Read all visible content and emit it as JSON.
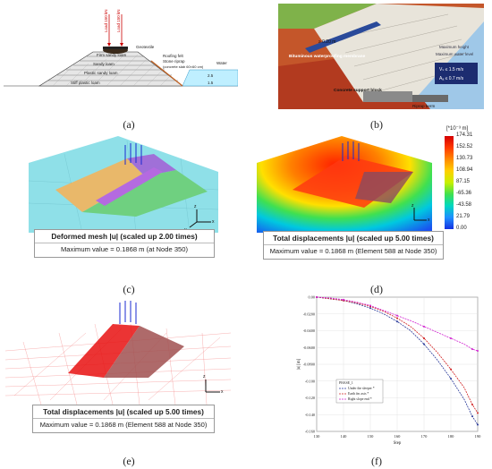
{
  "captions": [
    "(a)",
    "(b)",
    "(c)",
    "(d)",
    "(e)",
    "(f)"
  ],
  "panel_a": {
    "loads": [
      "Load 150 kN",
      "Load 150 kN"
    ],
    "layers": [
      "Firm sandy loam",
      "Sandy loam",
      "Plastic sandy loam",
      "Stiff plastic loam"
    ],
    "labels": {
      "geotextile": "Geotextile",
      "roofing": "Roofing felt",
      "riprap": "Stone riprap",
      "riprap_sub": "(concrete slab 60×60 cm)",
      "water": "Water"
    },
    "dims": [
      "2.5",
      "1.5"
    ]
  },
  "panel_b": {
    "labels": {
      "membrane": "Bituminous waterproofing membrane",
      "support": "Concrete support block",
      "berm": "Riprap berm",
      "thickness": "≥ 0.20 m",
      "right1": "Maximum height",
      "right2": "Maximum water level"
    },
    "legend": [
      "Vₛ ≤ 1.5 m/s",
      "Aₐ ≤ 0.7 m/s"
    ]
  },
  "panel_c": {
    "title": "Deformed mesh |u| (scaled up 2.00 times)",
    "value": "Maximum value = 0.1868 m (at Node 350)"
  },
  "panel_d": {
    "title": "Total displacements |u| (scaled up 5.00 times)",
    "value": "Maximum value = 0.1868 m (Element 588 at Node 350)",
    "scale_unit": "[*10⁻³ m]",
    "scale_values": [
      "174.31",
      "152.52",
      "130.73",
      "108.94",
      "87.15",
      "-65.36",
      "-43.58",
      "21.79",
      "0.00"
    ],
    "scale_colors": [
      "#d50000",
      "#ff3a00",
      "#ff8a00",
      "#ffd000",
      "#c8f000",
      "#40e050",
      "#00d8c0",
      "#1f8fff",
      "#1530e0"
    ]
  },
  "panel_e": {
    "title": "Total displacements |u| (scaled up 5.00 times)",
    "value": "Maximum value = 0.1868 m (Element 588 at Node 350)"
  },
  "panel_f": {
    "chart_data": {
      "type": "line",
      "xlabel": "Step",
      "ylabel": "|u| [m]",
      "xlim": [
        130,
        190
      ],
      "ylim": [
        -0.16,
        0
      ],
      "x_ticks": [
        "130",
        "140",
        "150",
        "160",
        "170",
        "180",
        "190"
      ],
      "y_ticks": [
        "0.00",
        "-0.0200",
        "-0.0400",
        "-0.0600",
        "-0.0800",
        "-0.100",
        "-0.120",
        "-0.140",
        "-0.160"
      ],
      "legend_title": "PHASE_1",
      "series": [
        {
          "name": "Under the sleeper *",
          "color": "#2a3a9a",
          "x": [
            130,
            135,
            140,
            145,
            150,
            155,
            160,
            165,
            170,
            175,
            180,
            185,
            188,
            190
          ],
          "y": [
            0,
            -0.002,
            -0.004,
            -0.008,
            -0.013,
            -0.02,
            -0.029,
            -0.04,
            -0.056,
            -0.075,
            -0.097,
            -0.122,
            -0.142,
            -0.152
          ]
        },
        {
          "name": "Earth fm axis *",
          "color": "#d02020",
          "x": [
            130,
            135,
            140,
            145,
            150,
            155,
            160,
            165,
            170,
            175,
            180,
            185,
            188,
            190
          ],
          "y": [
            0,
            -0.002,
            -0.004,
            -0.007,
            -0.011,
            -0.017,
            -0.025,
            -0.035,
            -0.049,
            -0.066,
            -0.086,
            -0.108,
            -0.128,
            -0.138
          ]
        },
        {
          "name": "Right slope end *",
          "color": "#d020d0",
          "x": [
            130,
            135,
            140,
            145,
            150,
            155,
            160,
            165,
            170,
            175,
            180,
            185,
            188,
            190
          ],
          "y": [
            0,
            -0.001,
            -0.003,
            -0.006,
            -0.01,
            -0.016,
            -0.022,
            -0.028,
            -0.035,
            -0.042,
            -0.049,
            -0.056,
            -0.062,
            -0.064
          ]
        }
      ]
    }
  }
}
